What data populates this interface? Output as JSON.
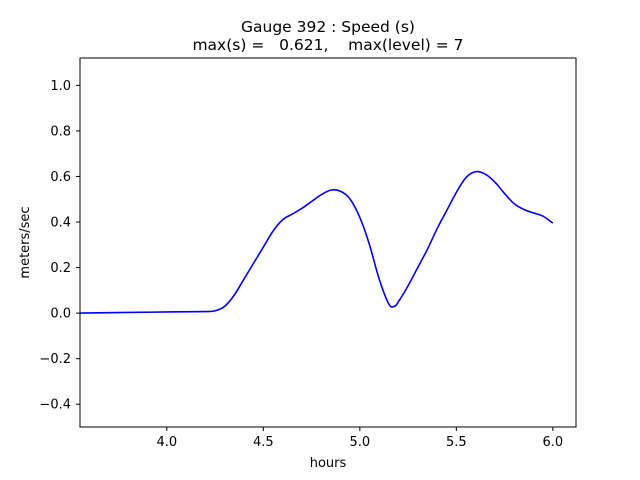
{
  "chart_data": {
    "type": "line",
    "title": "Gauge 392 : Speed (s)",
    "subtitle": "max(s) =   0.621,    max(level) = 7",
    "xlabel": "hours",
    "ylabel": "meters/sec",
    "xlim": [
      3.55,
      6.12
    ],
    "ylim": [
      -0.5,
      1.12
    ],
    "xticks": [
      4.0,
      4.5,
      5.0,
      5.5,
      6.0
    ],
    "xtick_labels": [
      "4.0",
      "4.5",
      "5.0",
      "5.5",
      "6.0"
    ],
    "yticks": [
      -0.4,
      -0.2,
      0.0,
      0.2,
      0.4,
      0.6,
      0.8,
      1.0
    ],
    "ytick_labels": [
      "−0.4",
      "−0.2",
      "0.0",
      "0.2",
      "0.4",
      "0.6",
      "0.8",
      "1.0"
    ],
    "grid": false,
    "series": [
      {
        "color": "#0000ff",
        "x": [
          3.55,
          3.8,
          4.0,
          4.2,
          4.25,
          4.3,
          4.35,
          4.4,
          4.45,
          4.5,
          4.55,
          4.6,
          4.65,
          4.7,
          4.75,
          4.8,
          4.85,
          4.9,
          4.95,
          5.0,
          5.05,
          5.1,
          5.15,
          5.18,
          5.2,
          5.25,
          5.3,
          5.35,
          5.4,
          5.45,
          5.5,
          5.55,
          5.6,
          5.65,
          5.7,
          5.75,
          5.8,
          5.85,
          5.9,
          5.95,
          6.0
        ],
        "y": [
          0.0,
          0.003,
          0.005,
          0.007,
          0.01,
          0.03,
          0.08,
          0.15,
          0.22,
          0.29,
          0.36,
          0.41,
          0.435,
          0.46,
          0.49,
          0.52,
          0.54,
          0.535,
          0.5,
          0.42,
          0.3,
          0.15,
          0.04,
          0.03,
          0.05,
          0.12,
          0.2,
          0.28,
          0.37,
          0.45,
          0.53,
          0.595,
          0.621,
          0.61,
          0.575,
          0.525,
          0.48,
          0.455,
          0.44,
          0.425,
          0.395
        ]
      }
    ]
  }
}
